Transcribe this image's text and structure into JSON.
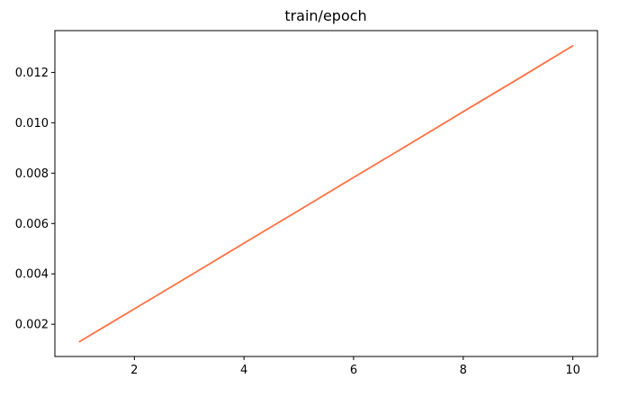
{
  "chart_data": {
    "type": "line",
    "title": "train/epoch",
    "xlabel": "",
    "ylabel": "",
    "xlim": [
      0.55,
      10.45
    ],
    "ylim": [
      0.00072,
      0.01366
    ],
    "x_ticks": [
      2,
      4,
      6,
      8,
      10
    ],
    "y_ticks": [
      0.002,
      0.004,
      0.006,
      0.008,
      0.01,
      0.012
    ],
    "x_tick_labels": [
      "2",
      "4",
      "6",
      "8",
      "10"
    ],
    "y_tick_labels": [
      "0.002",
      "0.004",
      "0.006",
      "0.008",
      "0.010",
      "0.012"
    ],
    "grid": false,
    "series": [
      {
        "color": "#ff7043",
        "x": [
          1,
          2,
          3,
          4,
          5,
          6,
          7,
          8,
          9,
          10
        ],
        "y": [
          0.00131,
          0.00261,
          0.00391,
          0.00522,
          0.00652,
          0.00783,
          0.00913,
          0.01044,
          0.01174,
          0.01306
        ]
      }
    ]
  }
}
